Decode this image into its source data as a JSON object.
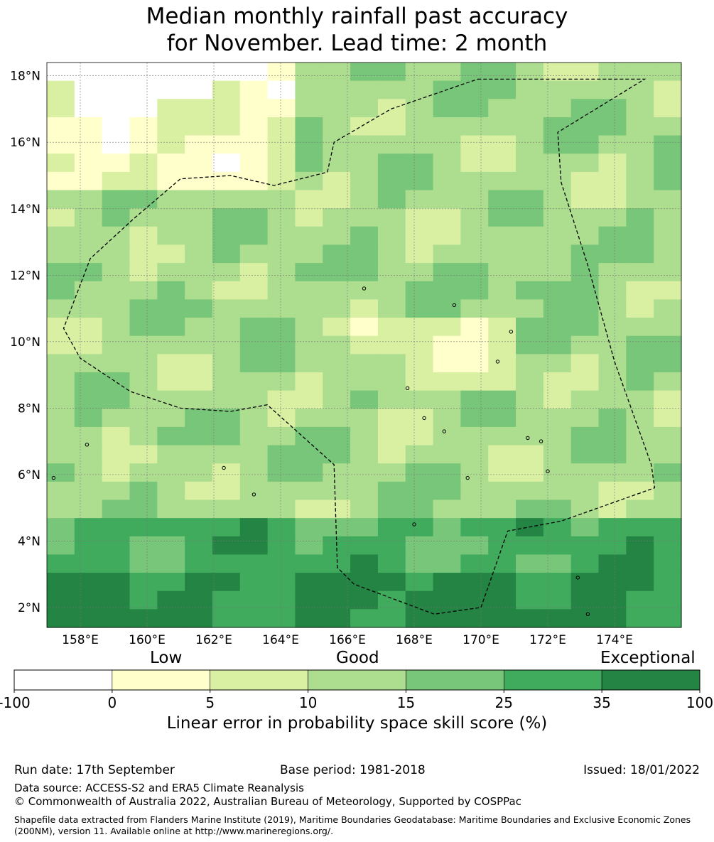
{
  "title_line1": "Median monthly rainfall past accuracy",
  "title_line2": "for November. Lead time: 2 month",
  "map": {
    "lon_range": [
      157,
      176
    ],
    "lat_range": [
      1.4,
      18.4
    ],
    "lat_ticks": [
      "18°N",
      "16°N",
      "14°N",
      "12°N",
      "10°N",
      "8°N",
      "6°N",
      "4°N",
      "2°N"
    ],
    "lon_ticks": [
      "158°E",
      "160°E",
      "162°E",
      "164°E",
      "166°E",
      "168°E",
      "170°E",
      "172°E",
      "174°E"
    ],
    "gridlines": true,
    "eez_boundary": "dashed",
    "colors": [
      "#ffffff",
      "#ffffcc",
      "#d9f0a3",
      "#addd8e",
      "#78c679",
      "#41ab5d",
      "#238443"
    ]
  },
  "legend": {
    "categories": [
      "Low",
      "Good",
      "Exceptional"
    ],
    "ticks": [
      "-100",
      "0",
      "5",
      "10",
      "15",
      "25",
      "35",
      "100"
    ],
    "colors": [
      "#ffffff",
      "#ffffcc",
      "#d9f0a3",
      "#addd8e",
      "#78c679",
      "#41ab5d",
      "#238443"
    ],
    "title": "Linear error in probability space skill score (%)"
  },
  "footer": {
    "run_date": "Run date: 17th September",
    "base_period": "Base period: 1981-2018",
    "issued": "Issued: 18/01/2022",
    "data_source": "Data source: ACCESS-S2 and ERA5 Climate Reanalysis",
    "copyright": "© Commonwealth of Australia 2022, Australian Bureau of Meteorology, Supported by COSPPac",
    "shapefile": "Shapefile data extracted from Flanders Marine Institute (2019), Maritime Boundaries Geodatabase: Maritime Boundaries and Exclusive Economic Zones (200NM), version 11. Available online at http://www.marineregions.org/."
  }
}
